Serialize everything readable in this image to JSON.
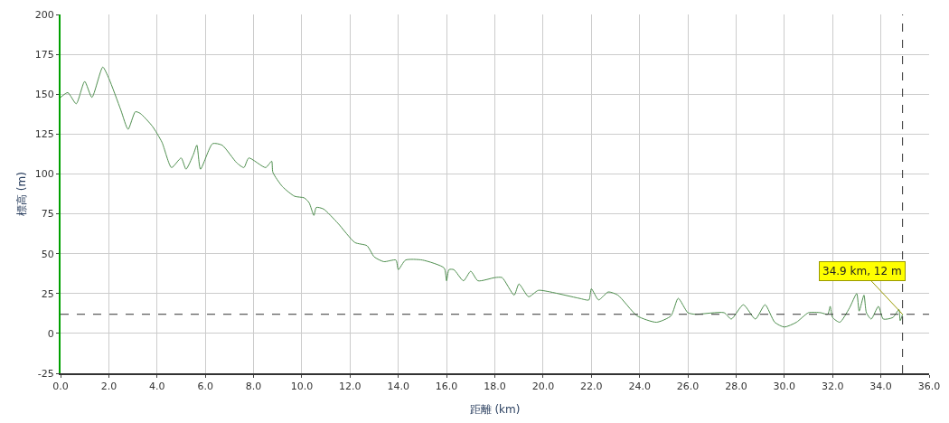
{
  "chart_data": {
    "type": "line",
    "xlabel": "距離 (km)",
    "ylabel": "標高 (m)",
    "x": [
      0.0,
      0.3,
      0.65,
      1.0,
      1.3,
      1.75,
      2.0,
      2.5,
      2.8,
      3.1,
      3.3,
      3.8,
      4.2,
      4.6,
      5.0,
      5.2,
      5.5,
      5.65,
      5.8,
      6.3,
      6.7,
      7.3,
      7.6,
      7.8,
      8.5,
      8.75,
      8.8,
      9.2,
      9.7,
      10.1,
      10.3,
      10.5,
      10.6,
      10.9,
      11.5,
      12.2,
      12.7,
      13.0,
      13.4,
      13.9,
      14.0,
      14.3,
      15.0,
      15.9,
      16.0,
      16.1,
      16.3,
      16.7,
      17.0,
      17.3,
      18.0,
      18.3,
      18.8,
      19.0,
      19.4,
      19.8,
      20.3,
      21.5,
      21.9,
      22.0,
      22.3,
      22.7,
      23.1,
      23.9,
      24.7,
      25.3,
      25.6,
      26.0,
      26.3,
      27.5,
      27.8,
      28.3,
      28.8,
      29.2,
      29.6,
      30.0,
      30.5,
      31.0,
      31.5,
      31.8,
      31.9,
      32.0,
      32.3,
      32.7,
      33.0,
      33.1,
      33.3,
      33.4,
      33.6,
      33.9,
      34.1,
      34.5,
      34.75,
      34.8,
      34.9
    ],
    "series": [
      {
        "color": "#4f8f4f",
        "values": [
          148,
          151,
          144,
          158,
          148,
          167,
          160,
          140,
          128,
          139,
          138,
          130,
          120,
          104,
          110,
          103,
          112,
          118,
          103,
          119,
          118,
          107,
          104,
          110,
          104,
          108,
          101,
          92,
          86,
          85,
          82,
          74,
          79,
          78,
          69,
          57,
          55,
          48,
          45,
          46,
          40,
          46,
          46,
          41,
          33,
          40,
          40,
          33,
          39,
          33,
          35,
          35,
          24,
          31,
          23,
          27,
          26,
          22,
          21,
          28,
          21,
          26,
          24,
          11,
          7,
          11,
          22,
          13,
          12,
          13,
          9,
          18,
          9,
          18,
          7,
          4,
          7,
          13,
          13,
          12,
          17,
          10,
          7,
          16,
          25,
          14,
          24,
          13,
          9,
          17,
          9,
          10,
          15,
          8,
          12
        ]
      }
    ],
    "xlim": [
      0,
      36
    ],
    "ylim": [
      -25,
      200
    ],
    "xticks": [
      {
        "value": 0,
        "label": "0.0"
      },
      {
        "value": 2,
        "label": "2.0"
      },
      {
        "value": 4,
        "label": "4.0"
      },
      {
        "value": 6,
        "label": "6.0"
      },
      {
        "value": 8,
        "label": "8.0"
      },
      {
        "value": 10,
        "label": "10.0"
      },
      {
        "value": 12,
        "label": "12.0"
      },
      {
        "value": 14,
        "label": "14.0"
      },
      {
        "value": 16,
        "label": "16.0"
      },
      {
        "value": 18,
        "label": "18.0"
      },
      {
        "value": 20,
        "label": "20.0"
      },
      {
        "value": 22,
        "label": "22.0"
      },
      {
        "value": 24,
        "label": "24.0"
      },
      {
        "value": 26,
        "label": "26.0"
      },
      {
        "value": 28,
        "label": "28.0"
      },
      {
        "value": 30,
        "label": "30.0"
      },
      {
        "value": 32,
        "label": "32.0"
      },
      {
        "value": 34,
        "label": "34.0"
      },
      {
        "value": 36,
        "label": "36.0"
      }
    ],
    "yticks": [
      -25,
      0,
      25,
      50,
      75,
      100,
      125,
      150,
      175,
      200
    ],
    "grid": true,
    "marker": "none",
    "line_style": "solid",
    "ref_lines": [
      {
        "axis": "x",
        "value": 34.9,
        "color": "#333333",
        "line_style": "dashed"
      },
      {
        "axis": "y",
        "value": 12,
        "color": "#333333",
        "line_style": "dashed"
      }
    ],
    "annotations": [
      {
        "text": "34.9 km, 12 m",
        "x": 34.9,
        "y": 12
      }
    ]
  }
}
